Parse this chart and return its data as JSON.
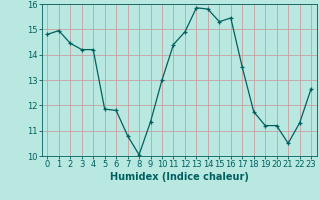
{
  "x": [
    0,
    1,
    2,
    3,
    4,
    5,
    6,
    7,
    8,
    9,
    10,
    11,
    12,
    13,
    14,
    15,
    16,
    17,
    18,
    19,
    20,
    21,
    22,
    23
  ],
  "y": [
    14.8,
    14.95,
    14.45,
    14.2,
    14.2,
    11.85,
    11.8,
    10.8,
    10.05,
    11.35,
    13.0,
    14.4,
    14.9,
    15.85,
    15.8,
    15.3,
    15.45,
    13.5,
    11.75,
    11.2,
    11.2,
    10.5,
    11.3,
    12.65
  ],
  "line_color": "#006060",
  "marker": "+",
  "marker_size": 3.5,
  "bg_color": "#b8e8e0",
  "grid_color": "#c8a0a0",
  "xlabel": "Humidex (Indice chaleur)",
  "ylim": [
    10,
    16
  ],
  "xlim": [
    -0.5,
    23.5
  ],
  "yticks": [
    10,
    11,
    12,
    13,
    14,
    15,
    16
  ],
  "xticks": [
    0,
    1,
    2,
    3,
    4,
    5,
    6,
    7,
    8,
    9,
    10,
    11,
    12,
    13,
    14,
    15,
    16,
    17,
    18,
    19,
    20,
    21,
    22,
    23
  ],
  "label_fontsize": 7,
  "tick_fontsize": 6
}
